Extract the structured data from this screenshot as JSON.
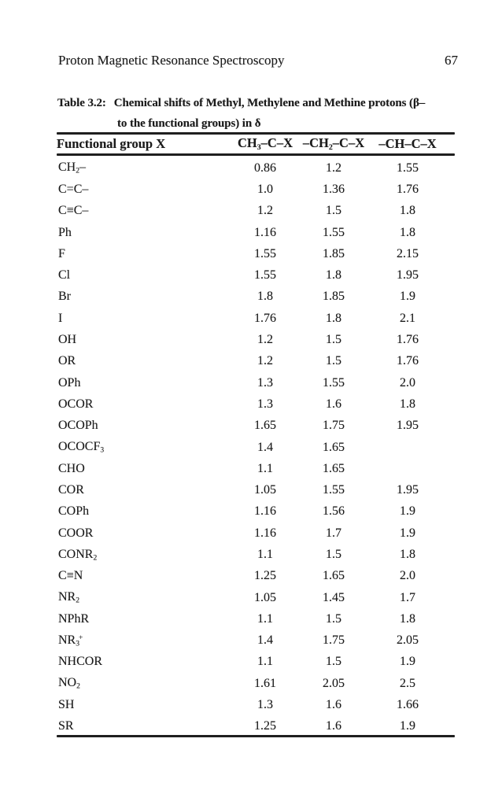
{
  "page": {
    "running_header": "Proton Magnetic Resonance Spectroscopy",
    "page_number": "67"
  },
  "colors": {
    "paper": "#ffffff",
    "ink": "#1b1b1b"
  },
  "table": {
    "title_prefix": "Table 3.2:",
    "title_line1": "Chemical shifts of Methyl, Methylene and Methine protons (β–",
    "title_line2": "to the functional groups) in δ",
    "columns": {
      "label": "Functional group X",
      "col1": [
        [
          "t",
          "CH"
        ],
        [
          "s",
          "3"
        ],
        [
          "t",
          "–C–X"
        ]
      ],
      "col2": [
        [
          "t",
          "–CH"
        ],
        [
          "s",
          "2"
        ],
        [
          "t",
          "–C–X"
        ]
      ],
      "col3": [
        [
          "t",
          "–CH–C–X"
        ]
      ]
    },
    "rows": [
      {
        "label": [
          [
            "t",
            "CH"
          ],
          [
            "s",
            "2"
          ],
          [
            "t",
            "–"
          ]
        ],
        "values": [
          "0.86",
          "1.2",
          "1.55"
        ]
      },
      {
        "label": [
          [
            "t",
            "C=C–"
          ]
        ],
        "values": [
          "1.0",
          "1.36",
          "1.76"
        ]
      },
      {
        "label": [
          [
            "t",
            "C≡C–"
          ]
        ],
        "values": [
          "1.2",
          "1.5",
          "1.8"
        ]
      },
      {
        "label": [
          [
            "t",
            "Ph"
          ]
        ],
        "values": [
          "1.16",
          "1.55",
          "1.8"
        ]
      },
      {
        "label": [
          [
            "t",
            "F"
          ]
        ],
        "values": [
          "1.55",
          "1.85",
          "2.15"
        ]
      },
      {
        "label": [
          [
            "t",
            "Cl"
          ]
        ],
        "values": [
          "1.55",
          "1.8",
          "1.95"
        ]
      },
      {
        "label": [
          [
            "t",
            "Br"
          ]
        ],
        "values": [
          "1.8",
          "1.85",
          "1.9"
        ]
      },
      {
        "label": [
          [
            "t",
            "I"
          ]
        ],
        "values": [
          "1.76",
          "1.8",
          "2.1"
        ]
      },
      {
        "label": [
          [
            "t",
            "OH"
          ]
        ],
        "values": [
          "1.2",
          "1.5",
          "1.76"
        ]
      },
      {
        "label": [
          [
            "t",
            "OR"
          ]
        ],
        "values": [
          "1.2",
          "1.5",
          "1.76"
        ]
      },
      {
        "label": [
          [
            "t",
            "OPh"
          ]
        ],
        "values": [
          "1.3",
          "1.55",
          "2.0"
        ]
      },
      {
        "label": [
          [
            "t",
            "OCOR"
          ]
        ],
        "values": [
          "1.3",
          "1.6",
          "1.8"
        ]
      },
      {
        "label": [
          [
            "t",
            "OCOPh"
          ]
        ],
        "values": [
          "1.65",
          "1.75",
          "1.95"
        ]
      },
      {
        "label": [
          [
            "t",
            "OCOCF"
          ],
          [
            "s",
            "3"
          ]
        ],
        "values": [
          "1.4",
          "1.65",
          ""
        ]
      },
      {
        "label": [
          [
            "t",
            "CHO"
          ]
        ],
        "values": [
          "1.1",
          "1.65",
          ""
        ]
      },
      {
        "label": [
          [
            "t",
            "COR"
          ]
        ],
        "values": [
          "1.05",
          "1.55",
          "1.95"
        ]
      },
      {
        "label": [
          [
            "t",
            "COPh"
          ]
        ],
        "values": [
          "1.16",
          "1.56",
          "1.9"
        ]
      },
      {
        "label": [
          [
            "t",
            "COOR"
          ]
        ],
        "values": [
          "1.16",
          "1.7",
          "1.9"
        ]
      },
      {
        "label": [
          [
            "t",
            "CONR"
          ],
          [
            "s",
            "2"
          ]
        ],
        "values": [
          "1.1",
          "1.5",
          "1.8"
        ]
      },
      {
        "label": [
          [
            "t",
            "C≡N"
          ]
        ],
        "values": [
          "1.25",
          "1.65",
          "2.0"
        ]
      },
      {
        "label": [
          [
            "t",
            "NR"
          ],
          [
            "s",
            "2"
          ]
        ],
        "values": [
          "1.05",
          "1.45",
          "1.7"
        ]
      },
      {
        "label": [
          [
            "t",
            "NPhR"
          ]
        ],
        "values": [
          "1.1",
          "1.5",
          "1.8"
        ]
      },
      {
        "label": [
          [
            "t",
            "NR"
          ],
          [
            "s",
            "3"
          ],
          [
            "p",
            "+"
          ]
        ],
        "values": [
          "1.4",
          "1.75",
          "2.05"
        ]
      },
      {
        "label": [
          [
            "t",
            "NHCOR"
          ]
        ],
        "values": [
          "1.1",
          "1.5",
          "1.9"
        ]
      },
      {
        "label": [
          [
            "t",
            "NO"
          ],
          [
            "s",
            "2"
          ]
        ],
        "values": [
          "1.61",
          "2.05",
          "2.5"
        ]
      },
      {
        "label": [
          [
            "t",
            "SH"
          ]
        ],
        "values": [
          "1.3",
          "1.6",
          "1.66"
        ]
      },
      {
        "label": [
          [
            "t",
            "SR"
          ]
        ],
        "values": [
          "1.25",
          "1.6",
          "1.9"
        ]
      }
    ]
  }
}
